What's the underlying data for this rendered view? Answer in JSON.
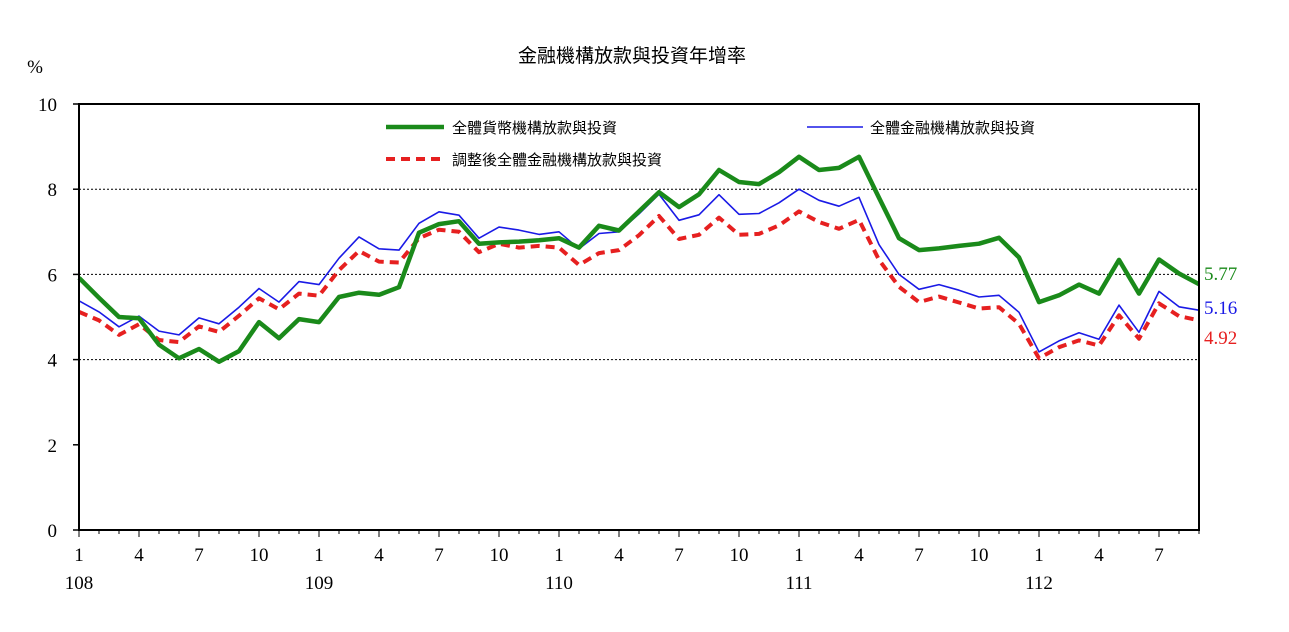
{
  "chart_data": {
    "type": "line",
    "title": "金融機構放款與投資年增率",
    "ylabel": "%",
    "xlabel": "",
    "ylim": [
      0,
      10
    ],
    "y_ticks": [
      "0",
      "2",
      "4",
      "6",
      "8",
      "10"
    ],
    "grid": "horizontal dotted at 4, 6, 8",
    "x_tick_labels": [
      "1",
      "4",
      "7",
      "10",
      "1",
      "4",
      "7",
      "10",
      "1",
      "4",
      "7",
      "10",
      "1",
      "4",
      "7",
      "10",
      "1",
      "4",
      "7"
    ],
    "year_labels": [
      {
        "label": "108",
        "month_index": 0
      },
      {
        "label": "109",
        "month_index": 12
      },
      {
        "label": "110",
        "month_index": 24
      },
      {
        "label": "111",
        "month_index": 36
      },
      {
        "label": "112",
        "month_index": 48
      }
    ],
    "series": [
      {
        "name": "全體貨幣機構放款與投資",
        "color": "#1a8a1a",
        "style": "solid-thick",
        "values": [
          5.92,
          5.45,
          5.0,
          4.97,
          4.35,
          4.03,
          4.25,
          3.95,
          4.2,
          4.88,
          4.5,
          4.95,
          4.88,
          5.47,
          5.57,
          5.52,
          5.7,
          6.98,
          7.18,
          7.25,
          6.72,
          6.75,
          6.77,
          6.8,
          6.85,
          6.63,
          7.14,
          7.03,
          7.48,
          7.93,
          7.58,
          7.88,
          8.45,
          8.17,
          8.12,
          8.4,
          8.76,
          8.45,
          8.5,
          8.76,
          7.8,
          6.85,
          6.57,
          6.61,
          6.67,
          6.72,
          6.86,
          6.4,
          5.35,
          5.51,
          5.76,
          5.55,
          6.34,
          5.55,
          6.35,
          6.02,
          5.77
        ],
        "end_label": "5.77"
      },
      {
        "name": "全體金融機構放款與投資",
        "color": "#1a1ae6",
        "style": "solid-thin",
        "values": [
          5.38,
          5.12,
          4.77,
          5.02,
          4.67,
          4.58,
          4.98,
          4.84,
          5.23,
          5.67,
          5.35,
          5.83,
          5.76,
          6.38,
          6.88,
          6.6,
          6.57,
          7.2,
          7.47,
          7.39,
          6.85,
          7.11,
          7.04,
          6.94,
          7.0,
          6.6,
          6.96,
          7.0,
          7.42,
          7.88,
          7.27,
          7.4,
          7.87,
          7.41,
          7.43,
          7.68,
          8.0,
          7.74,
          7.6,
          7.81,
          6.7,
          6.0,
          5.65,
          5.76,
          5.63,
          5.47,
          5.51,
          5.11,
          4.18,
          4.44,
          4.63,
          4.48,
          5.28,
          4.64,
          5.6,
          5.24,
          5.16
        ],
        "end_label": "5.16"
      },
      {
        "name": "調整後全體金融機構放款與投資",
        "color": "#e62020",
        "style": "dashed-thick",
        "values": [
          5.12,
          4.92,
          4.58,
          4.83,
          4.46,
          4.41,
          4.78,
          4.65,
          5.03,
          5.44,
          5.18,
          5.55,
          5.5,
          6.1,
          6.55,
          6.3,
          6.28,
          6.85,
          7.05,
          7.0,
          6.52,
          6.72,
          6.63,
          6.67,
          6.63,
          6.22,
          6.5,
          6.57,
          6.92,
          7.37,
          6.83,
          6.93,
          7.33,
          6.93,
          6.95,
          7.15,
          7.48,
          7.23,
          7.07,
          7.28,
          6.34,
          5.71,
          5.35,
          5.48,
          5.34,
          5.2,
          5.23,
          4.84,
          4.03,
          4.29,
          4.45,
          4.33,
          5.04,
          4.49,
          5.32,
          5.02,
          4.92
        ],
        "end_label": "4.92"
      }
    ]
  }
}
